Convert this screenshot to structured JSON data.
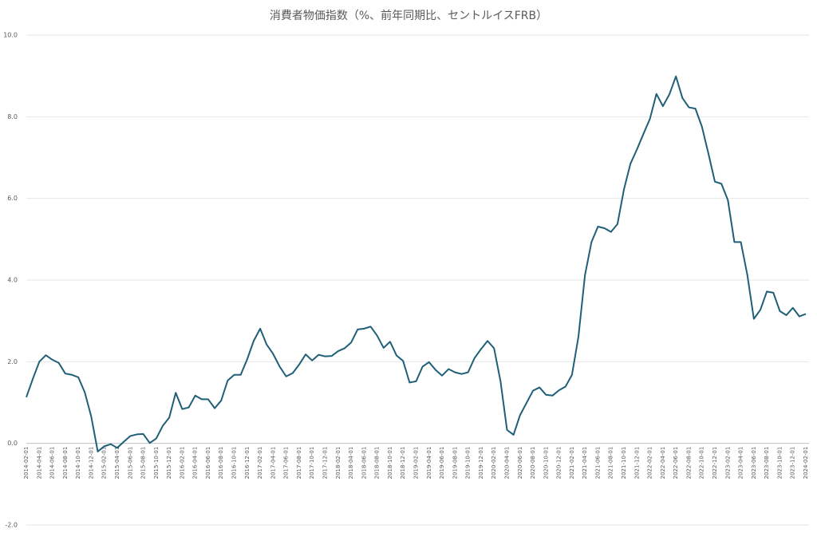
{
  "chart_data": {
    "type": "line",
    "title": "消費者物価指数（%、前年同期比、セントルイスFRB）",
    "categories": [
      "2014-02-01",
      null,
      "2014-04-01",
      null,
      "2014-06-01",
      null,
      "2014-08-01",
      null,
      "2014-10-01",
      null,
      "2014-12-01",
      null,
      "2015-02-01",
      null,
      "2015-04-01",
      null,
      "2015-06-01",
      null,
      "2015-08-01",
      null,
      "2015-10-01",
      null,
      "2015-12-01",
      null,
      "2016-02-01",
      null,
      "2016-04-01",
      null,
      "2016-06-01",
      null,
      "2016-08-01",
      null,
      "2016-10-01",
      null,
      "2016-12-01",
      null,
      "2017-02-01",
      null,
      "2017-04-01",
      null,
      "2017-06-01",
      null,
      "2017-08-01",
      null,
      "2017-10-01",
      null,
      "2017-12-01",
      null,
      "2018-02-01",
      null,
      "2018-04-01",
      null,
      "2018-06-01",
      null,
      "2018-08-01",
      null,
      "2018-10-01",
      null,
      "2018-12-01",
      null,
      "2019-02-01",
      null,
      "2019-04-01",
      null,
      "2019-06-01",
      null,
      "2019-08-01",
      null,
      "2019-10-01",
      null,
      "2019-12-01",
      null,
      "2020-02-01",
      null,
      "2020-04-01",
      null,
      "2020-06-01",
      null,
      "2020-08-01",
      null,
      "2020-10-01",
      null,
      "2020-12-01",
      null,
      "2021-02-01",
      null,
      "2021-04-01",
      null,
      "2021-06-01",
      null,
      "2021-08-01",
      null,
      "2021-10-01",
      null,
      "2021-12-01",
      null,
      "2022-02-01",
      null,
      "2022-04-01",
      null,
      "2022-06-01",
      null,
      "2022-08-01",
      null,
      "2022-10-01",
      null,
      "2022-12-01",
      null,
      "2023-02-01",
      null,
      "2023-04-01",
      null,
      "2023-06-01",
      null,
      "2023-08-01",
      null,
      "2023-10-01",
      null,
      "2023-12-01",
      null,
      "2024-02-01"
    ],
    "values": [
      1.13,
      1.58,
      2.0,
      2.16,
      2.05,
      1.97,
      1.71,
      1.68,
      1.62,
      1.25,
      0.65,
      -0.2,
      -0.07,
      -0.02,
      -0.11,
      0.04,
      0.18,
      0.22,
      0.23,
      0.01,
      0.12,
      0.43,
      0.63,
      1.24,
      0.84,
      0.88,
      1.17,
      1.08,
      1.08,
      0.86,
      1.05,
      1.54,
      1.68,
      1.68,
      2.06,
      2.51,
      2.81,
      2.42,
      2.19,
      1.88,
      1.64,
      1.72,
      1.93,
      2.18,
      2.03,
      2.17,
      2.13,
      2.14,
      2.26,
      2.33,
      2.47,
      2.79,
      2.81,
      2.86,
      2.64,
      2.34,
      2.49,
      2.15,
      2.02,
      1.49,
      1.52,
      1.88,
      1.99,
      1.8,
      1.66,
      1.82,
      1.74,
      1.7,
      1.74,
      2.09,
      2.31,
      2.51,
      2.33,
      1.52,
      0.33,
      0.21,
      0.69,
      0.99,
      1.29,
      1.37,
      1.19,
      1.17,
      1.3,
      1.39,
      1.68,
      2.62,
      4.12,
      4.93,
      5.31,
      5.27,
      5.18,
      5.37,
      6.22,
      6.85,
      7.2,
      7.58,
      7.95,
      8.56,
      8.26,
      8.55,
      8.99,
      8.46,
      8.23,
      8.2,
      7.76,
      7.1,
      6.41,
      6.36,
      5.96,
      4.93,
      4.93,
      4.12,
      3.05,
      3.27,
      3.72,
      3.69,
      3.24,
      3.14,
      3.32,
      3.11,
      3.17
    ],
    "color": "#1f5f78",
    "ylim": [
      -2,
      10
    ],
    "yticks": [
      {
        "value": -2,
        "label": "-2.0"
      },
      {
        "value": 0,
        "label": "0.0"
      },
      {
        "value": 2,
        "label": "2.0"
      },
      {
        "value": 4,
        "label": "4.0"
      },
      {
        "value": 6,
        "label": "6.0"
      },
      {
        "value": 8,
        "label": "8.0"
      },
      {
        "value": 10,
        "label": "10.0"
      }
    ],
    "grid": true
  }
}
